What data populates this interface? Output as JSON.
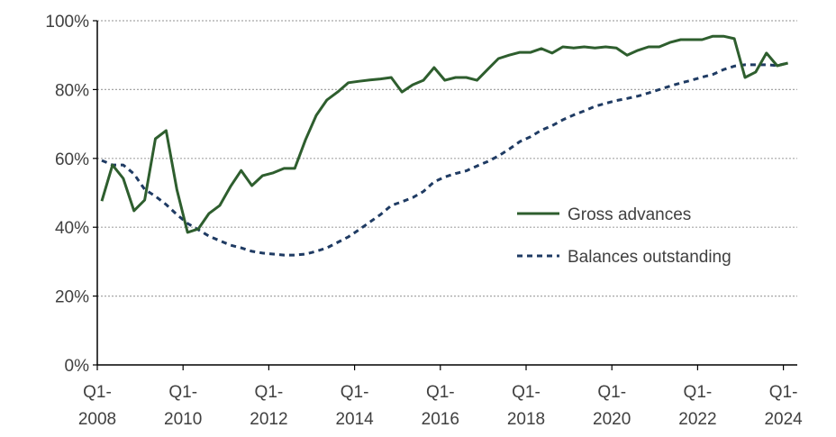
{
  "chart_data": {
    "type": "line",
    "title": "",
    "xlabel": "",
    "ylabel": "",
    "ylim": [
      0,
      100
    ],
    "y_unit": "%",
    "grid": "horizontal dotted",
    "legend_placement": "center-right",
    "y_ticks": [
      "0%",
      "20%",
      "40%",
      "60%",
      "80%",
      "100%"
    ],
    "x_ticks": [
      {
        "quarter": "Q1-",
        "year": "2008"
      },
      {
        "quarter": "Q1-",
        "year": "2010"
      },
      {
        "quarter": "Q1-",
        "year": "2012"
      },
      {
        "quarter": "Q1-",
        "year": "2014"
      },
      {
        "quarter": "Q1-",
        "year": "2016"
      },
      {
        "quarter": "Q1-",
        "year": "2018"
      },
      {
        "quarter": "Q1-",
        "year": "2020"
      },
      {
        "quarter": "Q1-",
        "year": "2022"
      },
      {
        "quarter": "Q1-",
        "year": "2024"
      }
    ],
    "x": [
      "Q1-2008",
      "Q2-2008",
      "Q3-2008",
      "Q4-2008",
      "Q1-2009",
      "Q2-2009",
      "Q3-2009",
      "Q4-2009",
      "Q1-2010",
      "Q2-2010",
      "Q3-2010",
      "Q4-2010",
      "Q1-2011",
      "Q2-2011",
      "Q3-2011",
      "Q4-2011",
      "Q1-2012",
      "Q2-2012",
      "Q3-2012",
      "Q4-2012",
      "Q1-2013",
      "Q2-2013",
      "Q3-2013",
      "Q4-2013",
      "Q1-2014",
      "Q2-2014",
      "Q3-2014",
      "Q4-2014",
      "Q1-2015",
      "Q2-2015",
      "Q3-2015",
      "Q4-2015",
      "Q1-2016",
      "Q2-2016",
      "Q3-2016",
      "Q4-2016",
      "Q1-2017",
      "Q2-2017",
      "Q3-2017",
      "Q4-2017",
      "Q1-2018",
      "Q2-2018",
      "Q3-2018",
      "Q4-2018",
      "Q1-2019",
      "Q2-2019",
      "Q3-2019",
      "Q4-2019",
      "Q1-2020",
      "Q2-2020",
      "Q3-2020",
      "Q4-2020",
      "Q1-2021",
      "Q2-2021",
      "Q3-2021",
      "Q4-2021",
      "Q1-2022",
      "Q2-2022",
      "Q3-2022",
      "Q4-2022",
      "Q1-2023",
      "Q2-2023",
      "Q3-2023",
      "Q4-2023",
      "Q1-2024"
    ],
    "series": [
      {
        "name": "Gross advances",
        "color": "#2e5e2e",
        "style": "solid",
        "values": [
          47.6,
          58.1,
          54.2,
          44.8,
          47.9,
          65.7,
          68.1,
          51.0,
          38.5,
          39.5,
          44.0,
          46.3,
          51.8,
          56.5,
          52.1,
          55.0,
          55.8,
          57.1,
          57.1,
          65.4,
          72.5,
          77.0,
          79.3,
          82.0,
          82.4,
          82.8,
          83.1,
          83.5,
          79.3,
          81.4,
          82.7,
          86.4,
          82.7,
          83.5,
          83.5,
          82.7,
          85.9,
          89.0,
          90.0,
          90.8,
          90.8,
          91.9,
          90.6,
          92.4,
          92.1,
          92.4,
          92.1,
          92.4,
          92.1,
          90.0,
          91.4,
          92.4,
          92.4,
          93.7,
          94.5,
          94.5,
          94.5,
          95.5,
          95.5,
          94.8,
          83.5,
          85.1,
          90.6,
          86.9,
          87.7
        ]
      },
      {
        "name": "Balances outstanding",
        "color": "#1f3b63",
        "style": "dashed",
        "values": [
          59.4,
          58.1,
          58.1,
          55.5,
          51.0,
          49.0,
          46.6,
          43.7,
          41.1,
          39.3,
          37.4,
          36.1,
          34.8,
          34.0,
          33.0,
          32.5,
          32.2,
          31.9,
          31.9,
          32.2,
          33.0,
          34.0,
          35.6,
          37.2,
          39.3,
          41.5,
          43.7,
          46.3,
          47.4,
          48.6,
          50.4,
          53.2,
          54.6,
          55.6,
          56.4,
          57.8,
          59.1,
          60.7,
          62.7,
          64.9,
          66.3,
          68.2,
          69.5,
          71.2,
          72.6,
          73.8,
          75.1,
          76.0,
          76.8,
          77.4,
          78.1,
          79.0,
          80.0,
          81.0,
          81.9,
          82.7,
          83.6,
          84.4,
          85.8,
          86.8,
          87.2,
          87.2,
          87.2,
          87.0,
          87.7
        ]
      }
    ]
  }
}
